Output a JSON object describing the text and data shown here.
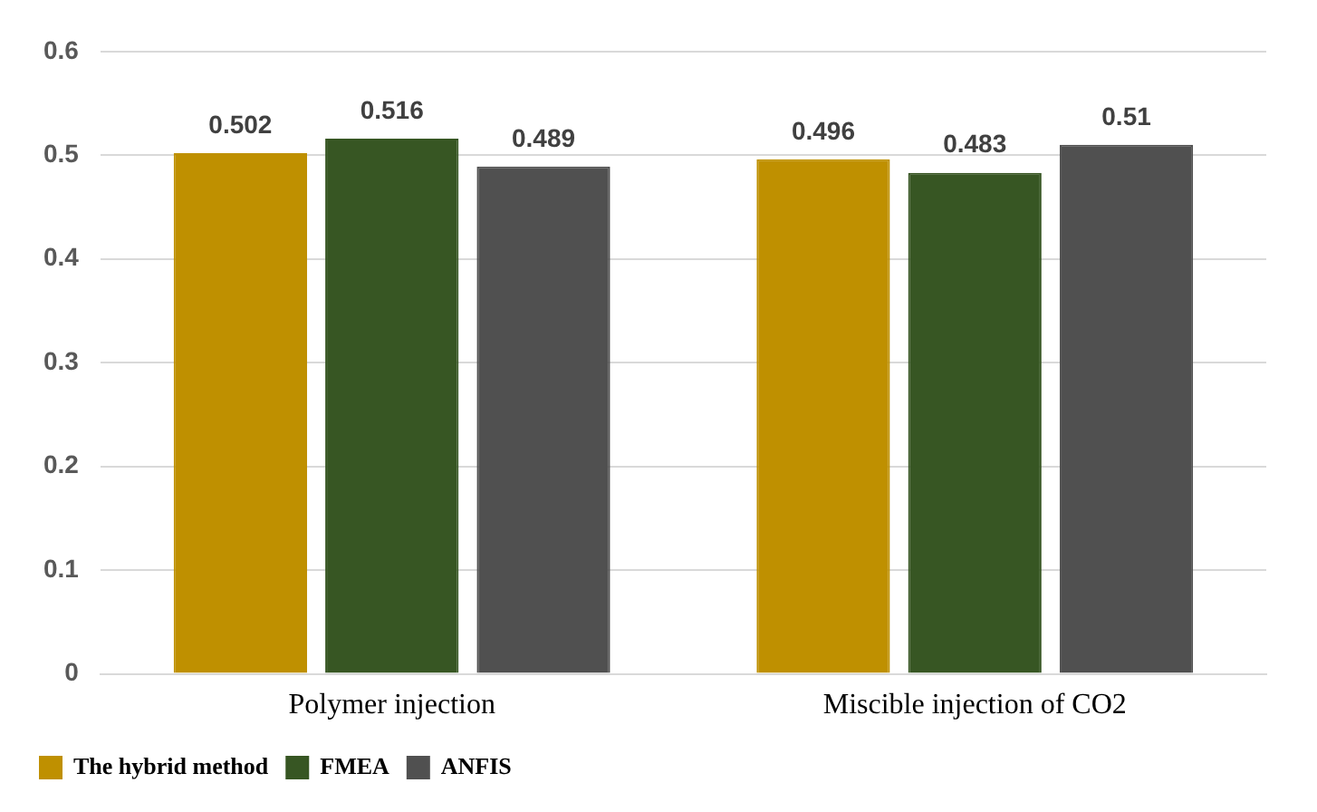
{
  "chart_data": {
    "type": "bar",
    "categories": [
      "Polymer injection",
      "Miscible injection of CO2"
    ],
    "series": [
      {
        "name": "The hybrid method",
        "color": "#bf9000",
        "values": [
          0.502,
          0.496
        ]
      },
      {
        "name": "FMEA",
        "color": "#375623",
        "values": [
          0.516,
          0.483
        ]
      },
      {
        "name": "ANFIS",
        "color": "#505050",
        "values": [
          0.489,
          0.51
        ]
      }
    ],
    "ylim": [
      0,
      0.6
    ],
    "yticks": [
      0,
      0.1,
      0.2,
      0.3,
      0.4,
      0.5,
      0.6
    ],
    "grid": "y",
    "legend": "bottom",
    "data_labels": true
  }
}
